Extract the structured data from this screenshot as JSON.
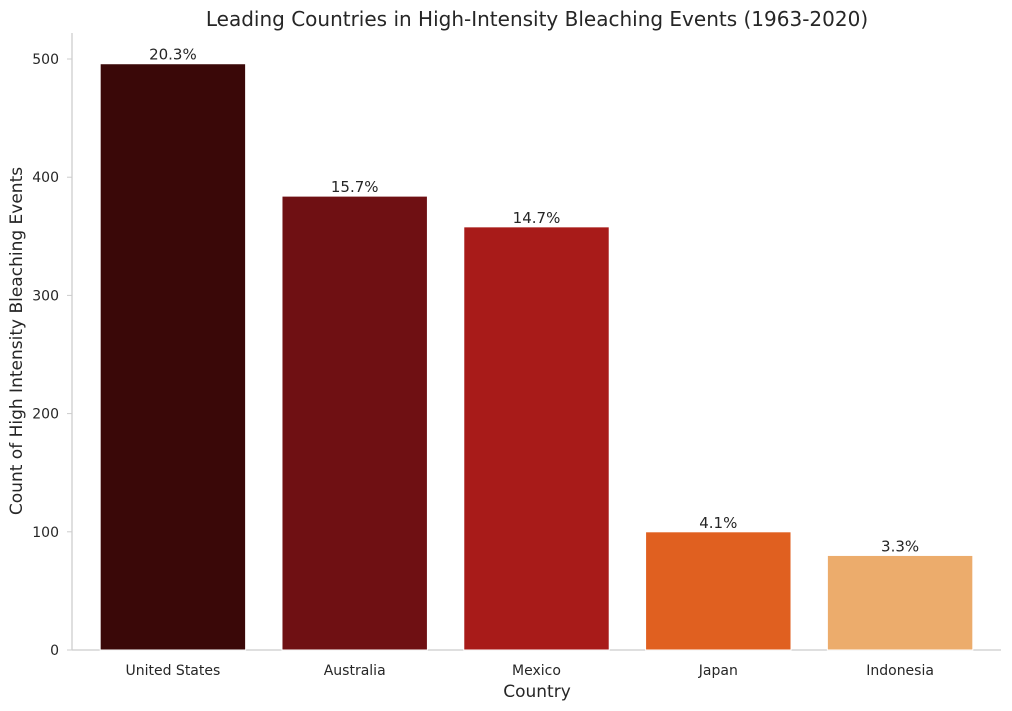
{
  "chart_data": {
    "type": "bar",
    "title": "Leading Countries in High-Intensity Bleaching Events (1963-2020)",
    "xlabel": "Country",
    "ylabel": "Count of High Intensity Bleaching Events",
    "categories": [
      "United States",
      "Australia",
      "Mexico",
      "Japan",
      "Indonesia"
    ],
    "values": [
      496,
      384,
      358,
      100,
      80
    ],
    "labels": [
      "20.3%",
      "15.7%",
      "14.7%",
      "4.1%",
      "3.3%"
    ],
    "colors": [
      "#3a0808",
      "#6f1013",
      "#a81b19",
      "#e06020",
      "#ecac6c"
    ],
    "ylim": [
      0,
      522
    ],
    "yticks": [
      0,
      100,
      200,
      300,
      400,
      500
    ],
    "grid": false
  }
}
